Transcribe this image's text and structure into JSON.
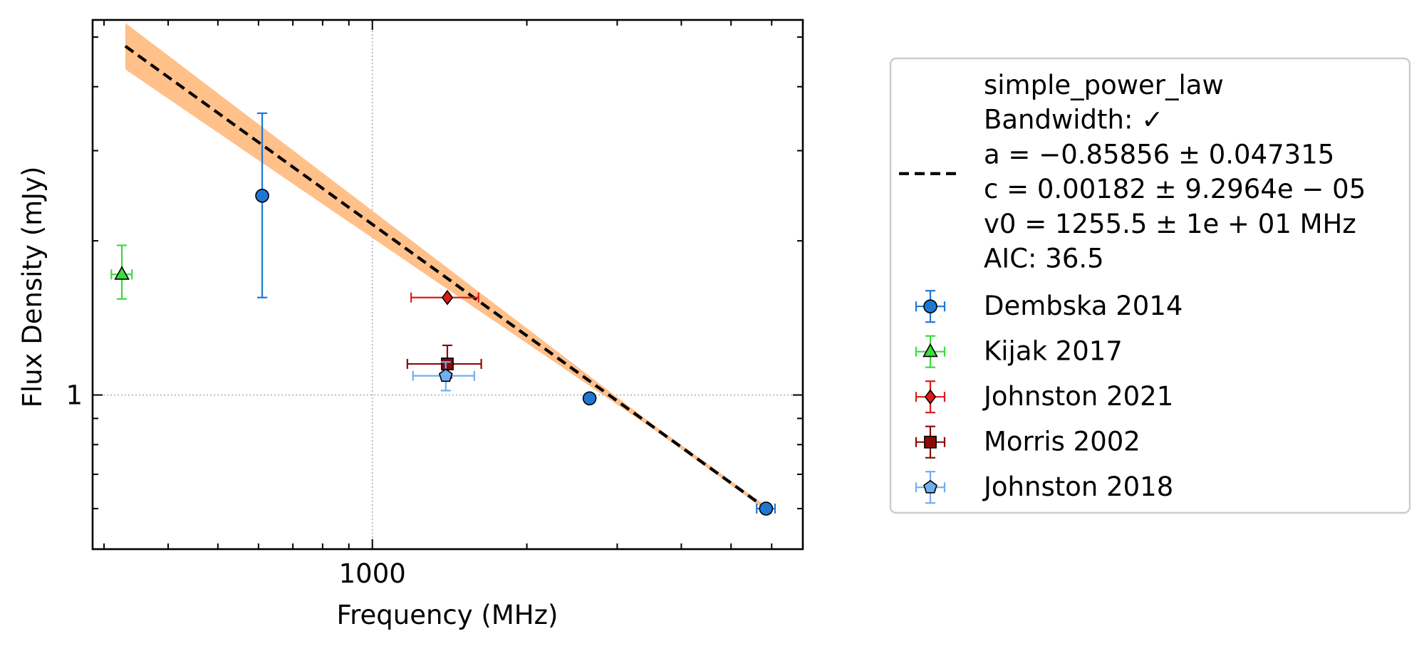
{
  "chart_data": {
    "type": "scatter",
    "xlabel": "Frequency (MHz)",
    "ylabel": "Flux Density (mJy)",
    "x_scale": "log",
    "y_scale": "log",
    "xlim": [
      285,
      6900
    ],
    "ylim": [
      0.5,
      5.4
    ],
    "x_major_ticks": [
      {
        "value": 1000,
        "label": "1000"
      }
    ],
    "y_major_ticks": [
      {
        "value": 1,
        "label": "1"
      }
    ],
    "grid": true,
    "legend_placement": "outside-right",
    "fit": {
      "name": "simple_power_law",
      "legend_lines": [
        "simple_power_law",
        "Bandwidth: ✓",
        "a = −0.85856 ± 0.047315",
        "c = 0.00182 ± 9.2964e − 05",
        "v0 = 1255.5 ± 1e + 01 MHz",
        "AIC: 36.5"
      ],
      "line_color": "#000000",
      "band_color": "#ffc08a",
      "x_range": [
        330,
        6000
      ],
      "y_range": [
        4.8,
        0.59
      ],
      "band_rel_err_left": 0.11,
      "band_rel_err_right": 0.01,
      "pivot_frequency": 4500
    },
    "series": [
      {
        "name": "Dembska 2014",
        "marker": "circle",
        "color": "#1f77d4",
        "points": [
          {
            "x": 610,
            "y": 2.45,
            "yerr_low": 0.9,
            "yerr_high": 1.1
          },
          {
            "x": 2650,
            "y": 0.985
          },
          {
            "x": 5850,
            "y": 0.6,
            "xerr": 240
          }
        ]
      },
      {
        "name": "Kijak 2017",
        "marker": "triangle",
        "color": "#3cdc3c",
        "points": [
          {
            "x": 325,
            "y": 1.72,
            "xerr": 15,
            "yerr_low": 0.18,
            "yerr_high": 0.24
          }
        ]
      },
      {
        "name": "Johnston 2021",
        "marker": "diamond",
        "color": "#e01818",
        "points": [
          {
            "x": 1400,
            "y": 1.55,
            "xerr": 210
          }
        ]
      },
      {
        "name": "Morris 2002",
        "marker": "square",
        "color": "#8b0a0a",
        "points": [
          {
            "x": 1400,
            "y": 1.15,
            "xerr": 230,
            "yerr_low": 0.07,
            "yerr_high": 0.1
          }
        ]
      },
      {
        "name": "Johnston 2018",
        "marker": "pentagon",
        "color": "#6fb0f0",
        "points": [
          {
            "x": 1390,
            "y": 1.09,
            "xerr": 190,
            "yerr_low": 0.07,
            "yerr_high": 0.07
          }
        ]
      }
    ]
  }
}
